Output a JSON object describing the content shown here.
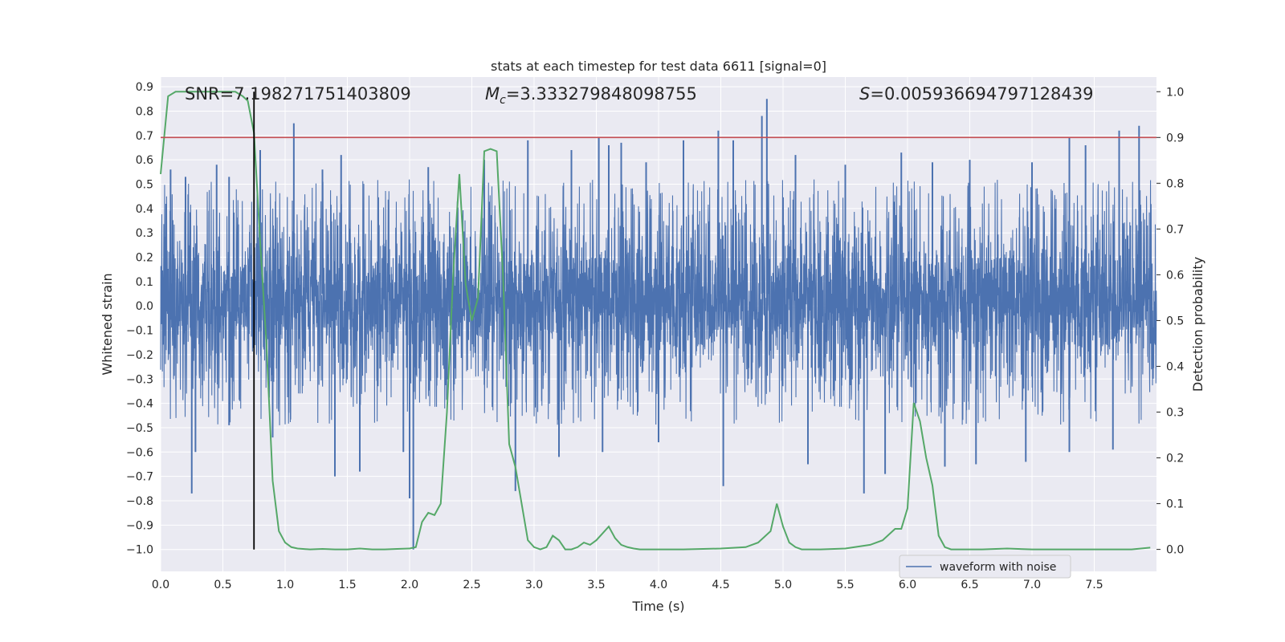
{
  "chart_data": {
    "type": "line",
    "title": "stats at each timestep for test data 6611 [signal=0]",
    "xlabel": "Time (s)",
    "ylabel_left": "Whitened strain",
    "ylabel_right": "Detection probability",
    "xlim": [
      0.0,
      8.0
    ],
    "ylim_left": [
      -1.09,
      0.94
    ],
    "ylim_right": [
      -0.048,
      1.032
    ],
    "x_ticks": [
      "0.0",
      "0.5",
      "1.0",
      "1.5",
      "2.0",
      "2.5",
      "3.0",
      "3.5",
      "4.0",
      "4.5",
      "5.0",
      "5.5",
      "6.0",
      "6.5",
      "7.0",
      "7.5"
    ],
    "y_ticks_left": [
      "0.9",
      "0.8",
      "0.7",
      "0.6",
      "0.5",
      "0.4",
      "0.3",
      "0.2",
      "0.1",
      "0.0",
      "−0.1",
      "−0.2",
      "−0.3",
      "−0.4",
      "−0.5",
      "−0.6",
      "−0.7",
      "−0.8",
      "−0.9",
      "−1.0"
    ],
    "y_ticks_right": [
      "1.0",
      "0.9",
      "0.8",
      "0.7",
      "0.6",
      "0.5",
      "0.4",
      "0.3",
      "0.2",
      "0.1",
      "0.0"
    ],
    "grid": true,
    "legend": {
      "position": "lower-right",
      "entries": [
        "waveform with noise"
      ]
    },
    "annotations": {
      "snr": "SNR=7.198271751403809",
      "mc_symbol": "M",
      "mc_sub": "c",
      "mc_value": "=3.333279848098755",
      "s_symbol": "S",
      "s_value": "=0.005936694797128439"
    },
    "threshold_probability": 0.9,
    "marker_time": 0.75,
    "waveform": {
      "name": "waveform with noise",
      "color": "#4c72b0",
      "core_band": [
        -0.25,
        0.3
      ],
      "max_peak": [
        4.87,
        0.85
      ],
      "min_peak": [
        2.03,
        -1.0
      ],
      "spikes_high": [
        [
          0.08,
          0.56
        ],
        [
          0.2,
          0.53
        ],
        [
          0.45,
          0.58
        ],
        [
          0.55,
          0.53
        ],
        [
          0.8,
          0.64
        ],
        [
          1.07,
          0.75
        ],
        [
          1.3,
          0.56
        ],
        [
          1.45,
          0.62
        ],
        [
          2.15,
          0.57
        ],
        [
          2.6,
          0.6
        ],
        [
          2.95,
          0.68
        ],
        [
          3.3,
          0.64
        ],
        [
          3.52,
          0.69
        ],
        [
          3.6,
          0.66
        ],
        [
          3.7,
          0.67
        ],
        [
          3.9,
          0.59
        ],
        [
          4.2,
          0.68
        ],
        [
          4.48,
          0.72
        ],
        [
          4.6,
          0.68
        ],
        [
          4.83,
          0.78
        ],
        [
          5.1,
          0.62
        ],
        [
          5.5,
          0.58
        ],
        [
          5.95,
          0.63
        ],
        [
          6.2,
          0.59
        ],
        [
          6.5,
          0.6
        ],
        [
          7.0,
          0.59
        ],
        [
          7.3,
          0.69
        ],
        [
          7.43,
          0.66
        ],
        [
          7.7,
          0.72
        ],
        [
          7.86,
          0.74
        ]
      ],
      "spikes_low": [
        [
          0.25,
          -0.77
        ],
        [
          0.28,
          -0.6
        ],
        [
          0.55,
          -0.49
        ],
        [
          0.9,
          -0.54
        ],
        [
          1.4,
          -0.7
        ],
        [
          1.6,
          -0.68
        ],
        [
          1.95,
          -0.6
        ],
        [
          2.0,
          -0.79
        ],
        [
          2.85,
          -0.76
        ],
        [
          3.2,
          -0.62
        ],
        [
          3.55,
          -0.6
        ],
        [
          4.0,
          -0.56
        ],
        [
          4.52,
          -0.74
        ],
        [
          5.2,
          -0.65
        ],
        [
          5.65,
          -0.77
        ],
        [
          5.82,
          -0.69
        ],
        [
          6.3,
          -0.66
        ],
        [
          6.55,
          -0.65
        ],
        [
          6.95,
          -0.64
        ],
        [
          7.3,
          -0.6
        ],
        [
          7.65,
          -0.59
        ]
      ]
    },
    "detection_probability": {
      "color": "#55a868",
      "x": [
        0.0,
        0.06,
        0.12,
        0.2,
        0.3,
        0.4,
        0.5,
        0.6,
        0.66,
        0.7,
        0.75,
        0.8,
        0.85,
        0.9,
        0.95,
        1.0,
        1.05,
        1.1,
        1.2,
        1.3,
        1.4,
        1.5,
        1.6,
        1.7,
        1.8,
        1.9,
        2.0,
        2.05,
        2.1,
        2.15,
        2.2,
        2.25,
        2.3,
        2.35,
        2.4,
        2.45,
        2.5,
        2.55,
        2.6,
        2.65,
        2.7,
        2.75,
        2.8,
        2.85,
        2.9,
        2.95,
        3.0,
        3.05,
        3.1,
        3.15,
        3.2,
        3.25,
        3.3,
        3.35,
        3.4,
        3.45,
        3.5,
        3.55,
        3.6,
        3.65,
        3.7,
        3.75,
        3.8,
        3.85,
        3.9,
        4.0,
        4.2,
        4.5,
        4.7,
        4.8,
        4.9,
        4.95,
        5.0,
        5.05,
        5.1,
        5.15,
        5.2,
        5.3,
        5.5,
        5.7,
        5.8,
        5.9,
        5.95,
        6.0,
        6.05,
        6.1,
        6.15,
        6.2,
        6.25,
        6.3,
        6.35,
        6.4,
        6.45,
        6.5,
        6.6,
        6.8,
        7.0,
        7.2,
        7.4,
        7.6,
        7.8,
        7.95
      ],
      "y": [
        0.82,
        0.99,
        1.0,
        1.0,
        1.0,
        1.0,
        1.0,
        1.0,
        0.99,
        0.98,
        0.91,
        0.67,
        0.45,
        0.15,
        0.04,
        0.015,
        0.005,
        0.002,
        0.0,
        0.001,
        0.0,
        0.0,
        0.002,
        0.0,
        0.0,
        0.001,
        0.002,
        0.005,
        0.06,
        0.08,
        0.075,
        0.1,
        0.3,
        0.6,
        0.82,
        0.58,
        0.5,
        0.55,
        0.87,
        0.875,
        0.87,
        0.6,
        0.23,
        0.18,
        0.1,
        0.02,
        0.005,
        0.0,
        0.005,
        0.03,
        0.02,
        0.0,
        0.0,
        0.005,
        0.015,
        0.01,
        0.02,
        0.035,
        0.05,
        0.025,
        0.01,
        0.005,
        0.002,
        0.0,
        0.0,
        0.0,
        0.0,
        0.002,
        0.005,
        0.015,
        0.04,
        0.1,
        0.05,
        0.015,
        0.005,
        0.0,
        0.0,
        0.0,
        0.002,
        0.01,
        0.02,
        0.045,
        0.045,
        0.09,
        0.32,
        0.28,
        0.2,
        0.14,
        0.03,
        0.005,
        0.0,
        0.0,
        0.0,
        0.0,
        0.0,
        0.002,
        0.0,
        0.0,
        0.0,
        0.0,
        0.0,
        0.004
      ]
    },
    "colors": {
      "panel": "#eaeaf2",
      "grid": "#ffffff",
      "threshold": "#c44e52",
      "marker": "#000000"
    }
  }
}
